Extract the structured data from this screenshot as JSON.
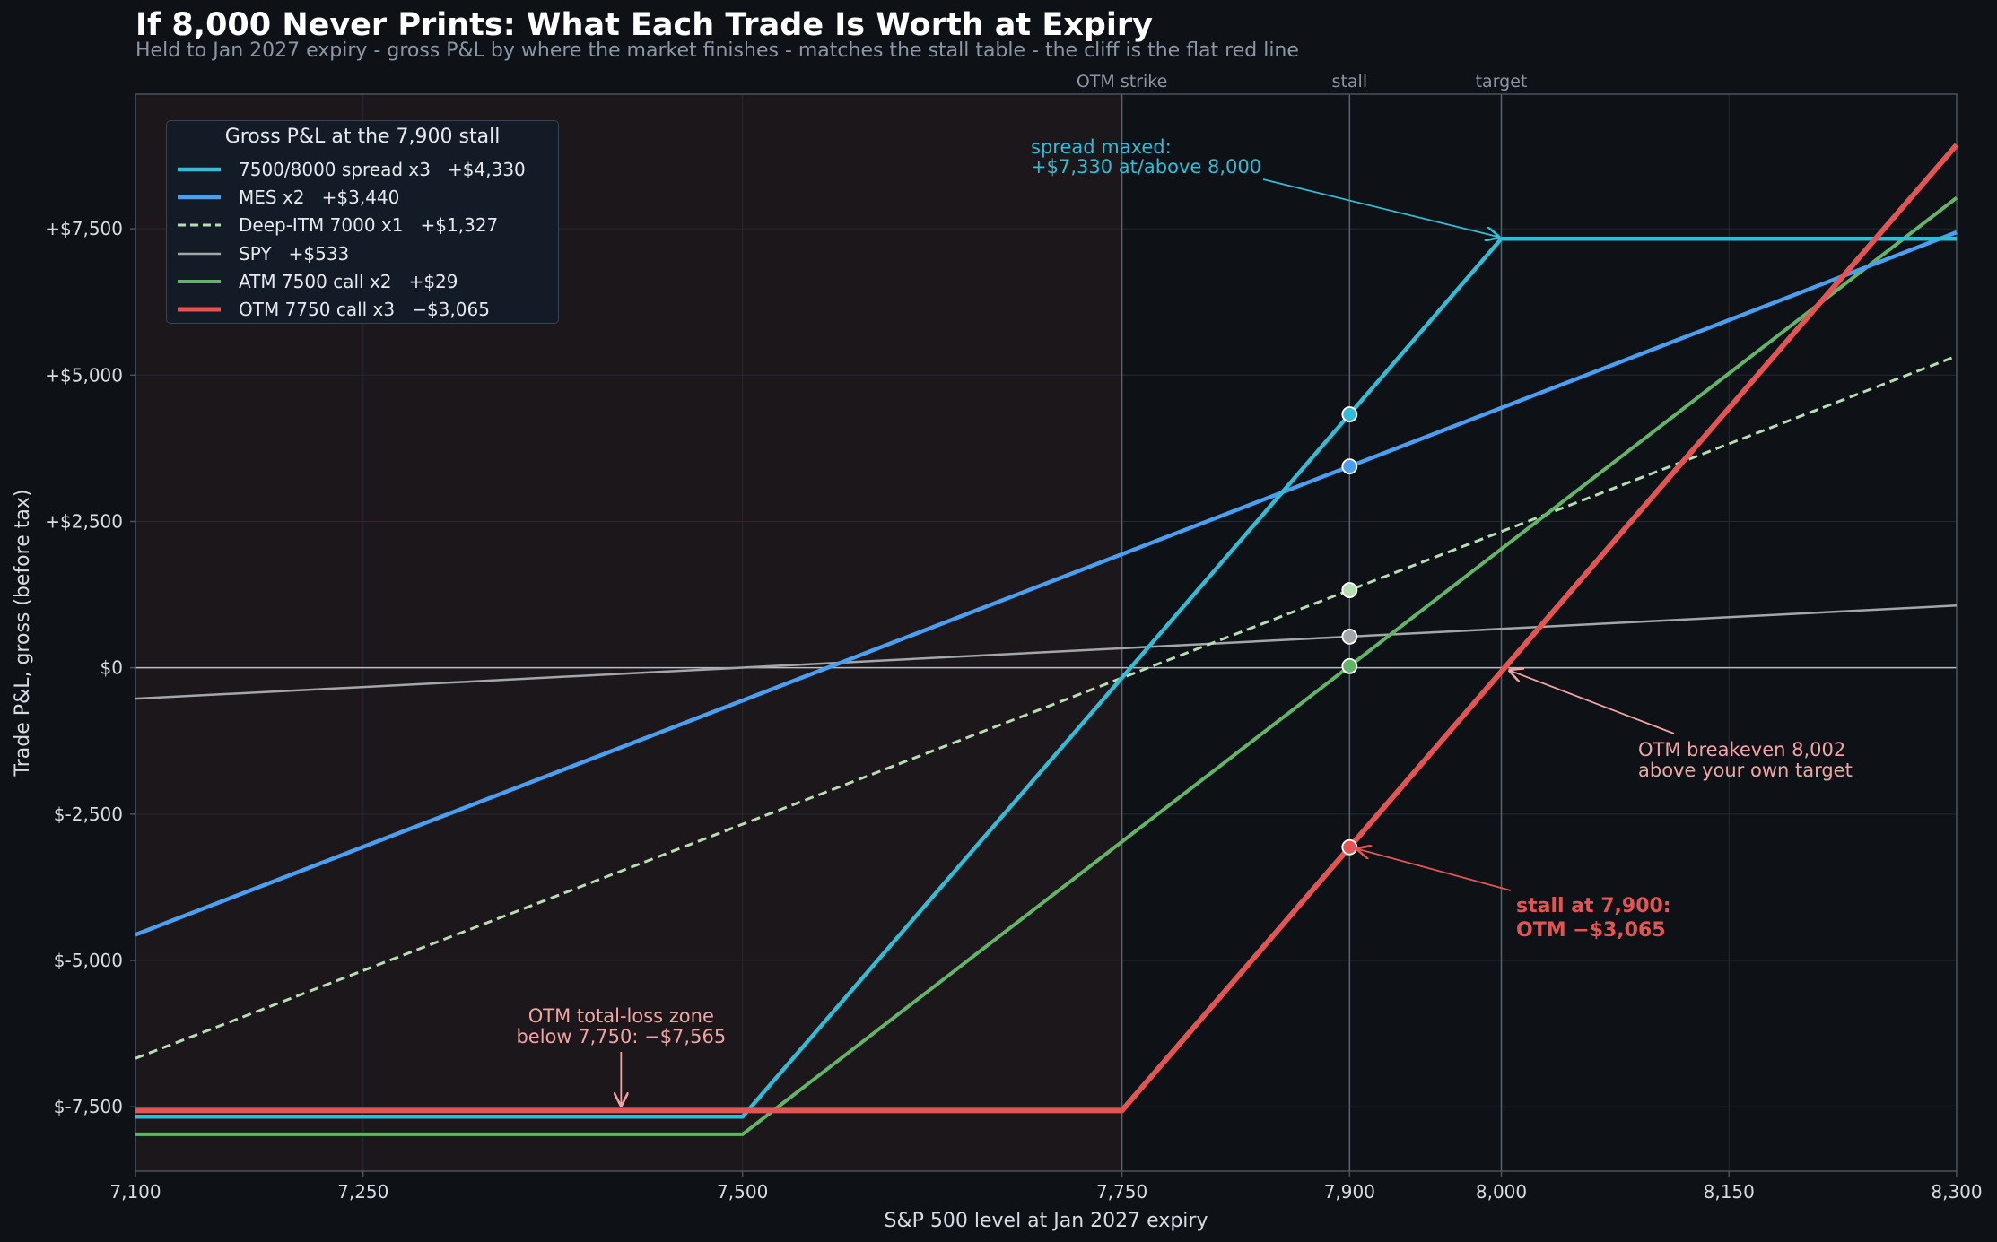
{
  "title": "If 8,000 Never Prints: What Each Trade Is Worth at Expiry",
  "subtitle": "Held to Jan 2027 expiry - gross P&L by where the market finishes - matches the stall table - the cliff is the flat red line",
  "colors": {
    "background": "#0e1217",
    "plot_bg": "#0e1217",
    "shaded_zone": "#1c171b",
    "grid": "#222a33",
    "axis": "#4a525c",
    "text": "#d8dde3",
    "muted": "#8c96a5",
    "spread": "#33bcd6",
    "mes": "#4a9ff0",
    "deep_itm": "#b7ddb3",
    "spy": "#a3a6aa",
    "atm": "#63b468",
    "otm": "#e35555",
    "otm_text": "#f2a3a3"
  },
  "chart_data": {
    "type": "line",
    "xlabel": "S&P 500 level at Jan 2027 expiry",
    "ylabel": "Trade P&L, gross (before tax)",
    "xlim": [
      7100,
      8300
    ],
    "ylim": [
      -8600,
      9800
    ],
    "x_ticks": [
      7100,
      7250,
      7500,
      7750,
      7900,
      8000,
      8150,
      8300
    ],
    "x_tick_labels": [
      "7,100",
      "7,250",
      "7,500",
      "7,750",
      "7,900",
      "8,000",
      "8,150",
      "8,300"
    ],
    "y_ticks": [
      -7500,
      -5000,
      -2500,
      0,
      2500,
      5000,
      7500
    ],
    "y_tick_labels": [
      "$-7,500",
      "$-5,000",
      "$-2,500",
      "$0",
      "+$2,500",
      "+$5,000",
      "+$7,500"
    ],
    "grid": true,
    "shaded_zone": {
      "x0": 7100,
      "x1": 7750
    },
    "vlines": [
      {
        "x": 7750,
        "label": "OTM strike"
      },
      {
        "x": 7900,
        "label": "stall"
      },
      {
        "x": 8000,
        "label": "target"
      }
    ],
    "hline": 0,
    "series": [
      {
        "name": "7500/8000 spread x3",
        "value_label": "+$4,330",
        "color": "spread",
        "style": "solid",
        "width": 4.5,
        "x": [
          7100,
          7500,
          8000,
          8300
        ],
        "y": [
          -7670,
          -7670,
          7330,
          7330
        ]
      },
      {
        "name": "MES x2",
        "value_label": "+$3,440",
        "color": "mes",
        "style": "solid",
        "width": 4.5,
        "x": [
          7100,
          8300
        ],
        "y": [
          -4560,
          7440
        ]
      },
      {
        "name": "Deep-ITM 7000 x1",
        "value_label": "+$1,327",
        "color": "deep_itm",
        "style": "dashed",
        "width": 3,
        "x": [
          7100,
          8300
        ],
        "y": [
          -6673,
          5327
        ]
      },
      {
        "name": "SPY",
        "value_label": "+$533",
        "color": "spy",
        "style": "solid",
        "width": 2.5,
        "x": [
          7100,
          8300
        ],
        "y": [
          -527,
          1063
        ]
      },
      {
        "name": "ATM 7500 call x2",
        "value_label": "+$29",
        "color": "atm",
        "style": "solid",
        "width": 4,
        "x": [
          7100,
          7500,
          8300
        ],
        "y": [
          -7971,
          -7971,
          8029
        ]
      },
      {
        "name": "OTM 7750 call x3",
        "value_label": "−$3,065",
        "color": "otm",
        "style": "solid",
        "width": 6,
        "x": [
          7100,
          7750,
          8300
        ],
        "y": [
          -7565,
          -7565,
          8935
        ]
      }
    ],
    "stall_points": [
      {
        "x": 7900,
        "y": 4330,
        "color": "spread"
      },
      {
        "x": 7900,
        "y": 3440,
        "color": "mes"
      },
      {
        "x": 7900,
        "y": 1327,
        "color": "deep_itm"
      },
      {
        "x": 7900,
        "y": 533,
        "color": "spy"
      },
      {
        "x": 7900,
        "y": 29,
        "color": "atm"
      },
      {
        "x": 7900,
        "y": -3065,
        "color": "otm"
      }
    ],
    "legend": {
      "title": "Gross P&L at the 7,900 stall",
      "placement": "top-left"
    },
    "annotations": {
      "spread_max": {
        "lines": [
          "spread maxed:",
          "+$7,330 at/above 8,000"
        ],
        "target_x": 8000,
        "target_y": 7330
      },
      "otm_breakeven": {
        "lines": [
          "OTM breakeven 8,002",
          "above your own target"
        ],
        "target_x": 8002,
        "target_y": 0
      },
      "stall": {
        "lines": [
          "stall at 7,900:",
          "OTM −$3,065"
        ],
        "target_x": 7900,
        "target_y": -3065
      },
      "loss_zone": {
        "lines": [
          "OTM total-loss zone",
          "below 7,750: −$7,565"
        ],
        "target_x": 7420,
        "target_y": -7565
      }
    }
  }
}
